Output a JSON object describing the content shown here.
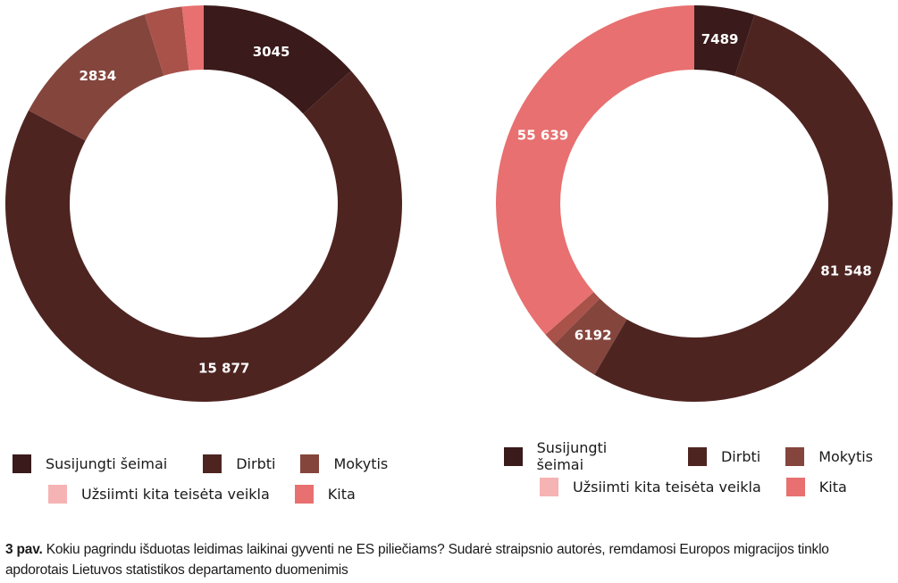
{
  "colors": {
    "susijungti_seimai": "#3A1A1A",
    "dirbti": "#4E2421",
    "mokytis": "#84453D",
    "uzsiimti": "#F6B3B3",
    "uzsiimti_slice": "#A8524A",
    "kita": "#E87070"
  },
  "legend_items": [
    {
      "label": "Susijungti šeimai",
      "color": "#3A1A1A"
    },
    {
      "label": "Dirbti",
      "color": "#4E2421"
    },
    {
      "label": "Mokytis",
      "color": "#84453D"
    },
    {
      "label": "Užsiimti kita teisėta veikla",
      "color": "#F6B3B3"
    },
    {
      "label": "Kita",
      "color": "#E87070"
    }
  ],
  "caption": {
    "figure_number": "3 pav.",
    "text": " Kokiu pagrindu išduotas leidimas laikinai gyventi ne ES piliečiams? Sudarė straipsnio autorės, remdamosi Europos migracijos tinklo apdorotais Lietuvos statistikos departamento duomenimis"
  },
  "chart_data": [
    {
      "type": "pie",
      "variant": "donut",
      "title": "",
      "categories": [
        "Susijungti šeimai",
        "Dirbti",
        "Mokytis",
        "Užsiimti kita teisėta veikla",
        "Kita"
      ],
      "values": [
        3045,
        15877,
        2834,
        700,
        400
      ],
      "labels": [
        "3045",
        "15 877",
        "2834",
        "",
        ""
      ],
      "colors": [
        "#3A1A1A",
        "#4E2421",
        "#84453D",
        "#A8524A",
        "#E87070"
      ],
      "legend_position": "bottom",
      "start_angle": 0,
      "direction": "clockwise"
    },
    {
      "type": "pie",
      "variant": "donut",
      "title": "",
      "categories": [
        "Susijungti šeimai",
        "Dirbti",
        "Mokytis",
        "Užsiimti kita teisėta veikla",
        "Kita"
      ],
      "values": [
        7489,
        81548,
        6192,
        1600,
        55639
      ],
      "labels": [
        "7489",
        "81 548",
        "6192",
        "",
        "55 639"
      ],
      "colors": [
        "#3A1A1A",
        "#4E2421",
        "#84453D",
        "#A8524A",
        "#E87070"
      ],
      "legend_position": "bottom",
      "start_angle": 0,
      "direction": "clockwise"
    }
  ]
}
